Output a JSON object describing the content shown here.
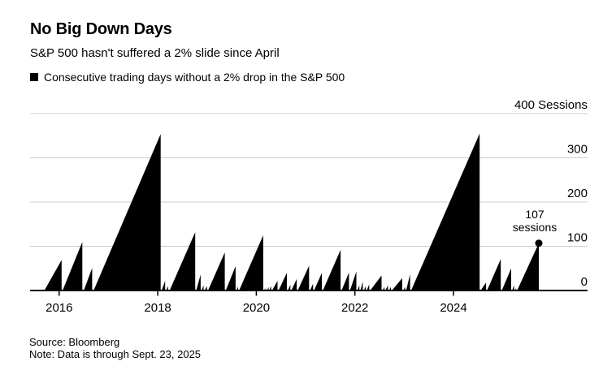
{
  "header": {
    "title": "No Big Down Days",
    "subtitle": "S&P 500 hasn't suffered a 2% slide since April",
    "legend_label": "Consecutive trading days without a 2% drop in the S&P 500",
    "legend_swatch_color": "#000000"
  },
  "annotation": {
    "line1": "107",
    "line2": "sessions"
  },
  "footer": {
    "source": "Source: Bloomberg",
    "note": "Note: Data is through Sept. 23, 2025"
  },
  "chart_data": {
    "type": "area",
    "title": "No Big Down Days",
    "subtitle": "S&P 500 hasn't suffered a 2% slide since April",
    "series_name": "Consecutive trading days without a 2% drop in the S&P 500",
    "x_unit": "year (decimal)",
    "y_unit": "sessions",
    "xlim": [
      2015.41,
      2026.72
    ],
    "ylim": [
      0,
      400
    ],
    "grid": true,
    "legend_position": "top-left",
    "x_ticks": [
      {
        "value": 2016,
        "label": "2016"
      },
      {
        "value": 2018,
        "label": "2018"
      },
      {
        "value": 2020,
        "label": "2020"
      },
      {
        "value": 2022,
        "label": "2022"
      },
      {
        "value": 2024,
        "label": "2024"
      }
    ],
    "y_ticks": [
      {
        "value": 0,
        "label": "0"
      },
      {
        "value": 100,
        "label": "100"
      },
      {
        "value": 200,
        "label": "200"
      },
      {
        "value": 300,
        "label": "300"
      },
      {
        "value": 400,
        "label": "400 Sessions"
      }
    ],
    "streaks": [
      {
        "start": 2015.7,
        "end": 2016.05,
        "peak": 69
      },
      {
        "start": 2016.07,
        "end": 2016.47,
        "peak": 110
      },
      {
        "start": 2016.5,
        "end": 2016.67,
        "peak": 51
      },
      {
        "start": 2016.7,
        "end": 2018.06,
        "peak": 354
      },
      {
        "start": 2018.08,
        "end": 2018.15,
        "peak": 22
      },
      {
        "start": 2018.17,
        "end": 2018.21,
        "peak": 10
      },
      {
        "start": 2018.24,
        "end": 2018.76,
        "peak": 132
      },
      {
        "start": 2018.78,
        "end": 2018.87,
        "peak": 36
      },
      {
        "start": 2018.89,
        "end": 2018.93,
        "peak": 12
      },
      {
        "start": 2018.95,
        "end": 2019.0,
        "peak": 10
      },
      {
        "start": 2019.02,
        "end": 2019.36,
        "peak": 86
      },
      {
        "start": 2019.38,
        "end": 2019.58,
        "peak": 55
      },
      {
        "start": 2019.6,
        "end": 2019.63,
        "peak": 9
      },
      {
        "start": 2019.65,
        "end": 2020.14,
        "peak": 125
      },
      {
        "start": 2020.16,
        "end": 2020.18,
        "peak": 6
      },
      {
        "start": 2020.19,
        "end": 2020.21,
        "peak": 5
      },
      {
        "start": 2020.22,
        "end": 2020.25,
        "peak": 8
      },
      {
        "start": 2020.26,
        "end": 2020.3,
        "peak": 10
      },
      {
        "start": 2020.32,
        "end": 2020.43,
        "peak": 22
      },
      {
        "start": 2020.45,
        "end": 2020.62,
        "peak": 40
      },
      {
        "start": 2020.64,
        "end": 2020.69,
        "peak": 13
      },
      {
        "start": 2020.71,
        "end": 2020.82,
        "peak": 26
      },
      {
        "start": 2020.84,
        "end": 2021.07,
        "peak": 56
      },
      {
        "start": 2021.09,
        "end": 2021.15,
        "peak": 15
      },
      {
        "start": 2021.17,
        "end": 2021.33,
        "peak": 40
      },
      {
        "start": 2021.35,
        "end": 2021.71,
        "peak": 92
      },
      {
        "start": 2021.73,
        "end": 2021.88,
        "peak": 41
      },
      {
        "start": 2021.9,
        "end": 2022.03,
        "peak": 43
      },
      {
        "start": 2022.05,
        "end": 2022.09,
        "peak": 12
      },
      {
        "start": 2022.11,
        "end": 2022.16,
        "peak": 20
      },
      {
        "start": 2022.18,
        "end": 2022.22,
        "peak": 10
      },
      {
        "start": 2022.24,
        "end": 2022.29,
        "peak": 14
      },
      {
        "start": 2022.31,
        "end": 2022.54,
        "peak": 34
      },
      {
        "start": 2022.56,
        "end": 2022.6,
        "peak": 8
      },
      {
        "start": 2022.62,
        "end": 2022.67,
        "peak": 12
      },
      {
        "start": 2022.69,
        "end": 2022.73,
        "peak": 8
      },
      {
        "start": 2022.75,
        "end": 2022.96,
        "peak": 28
      },
      {
        "start": 2022.98,
        "end": 2023.02,
        "peak": 8
      },
      {
        "start": 2023.04,
        "end": 2023.12,
        "peak": 37
      },
      {
        "start": 2023.14,
        "end": 2024.53,
        "peak": 355
      },
      {
        "start": 2024.55,
        "end": 2024.66,
        "peak": 18
      },
      {
        "start": 2024.68,
        "end": 2024.96,
        "peak": 71
      },
      {
        "start": 2024.98,
        "end": 2025.17,
        "peak": 50
      },
      {
        "start": 2025.19,
        "end": 2025.23,
        "peak": 12
      },
      {
        "start": 2025.25,
        "end": 2025.27,
        "peak": 6
      },
      {
        "start": 2025.29,
        "end": 2025.73,
        "peak": 107
      }
    ],
    "end_point": {
      "x": 2025.73,
      "y": 107,
      "label": "107 sessions"
    },
    "colors": {
      "fill": "#000000",
      "grid": "#cccccc",
      "axis": "#000000",
      "text": "#000000"
    }
  }
}
